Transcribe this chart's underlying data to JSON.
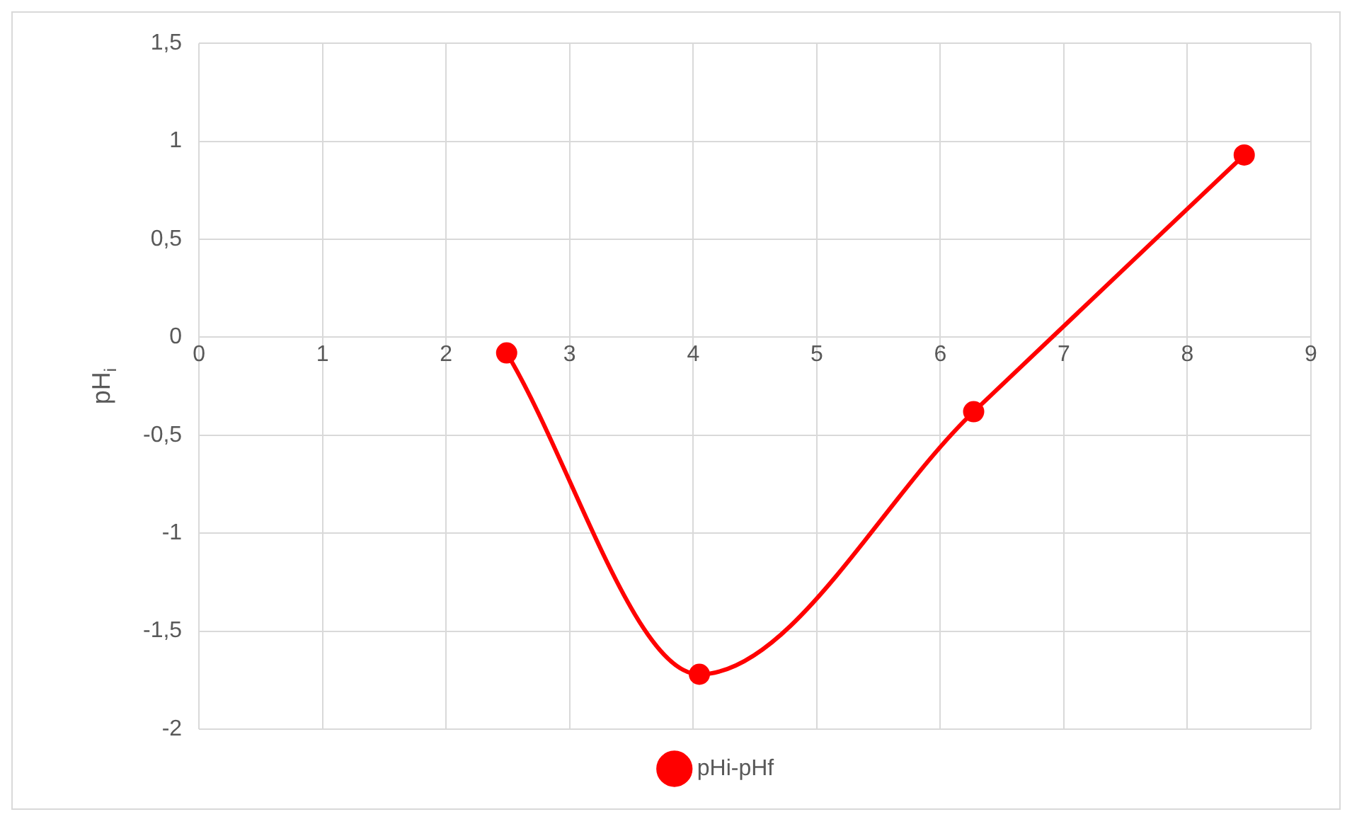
{
  "chart_data": {
    "type": "line",
    "ylabel": "pH$_{i}$",
    "x": [
      2.49,
      4.05,
      6.27,
      8.46
    ],
    "series": [
      {
        "name": "pHi-pHf",
        "color": "#ff0000",
        "values": [
          -0.08,
          -1.72,
          -0.38,
          0.93
        ]
      }
    ],
    "xlim": [
      0,
      9
    ],
    "xticks": [
      0,
      1,
      2,
      3,
      4,
      5,
      6,
      7,
      8,
      9
    ],
    "ylim": [
      -2,
      1.5
    ],
    "yticks": [
      {
        "value": -2,
        "label": "-2"
      },
      {
        "value": -1.5,
        "label": "-1,5"
      },
      {
        "value": -1,
        "label": "-1"
      },
      {
        "value": -0.5,
        "label": "-0,5"
      },
      {
        "value": 0,
        "label": "0"
      },
      {
        "value": 0.5,
        "label": "0,5"
      },
      {
        "value": 1,
        "label": "1"
      },
      {
        "value": 1.5,
        "label": "1,5"
      }
    ],
    "grid": true,
    "legend": "bottom",
    "marker": "circle",
    "line_style": "solid"
  }
}
